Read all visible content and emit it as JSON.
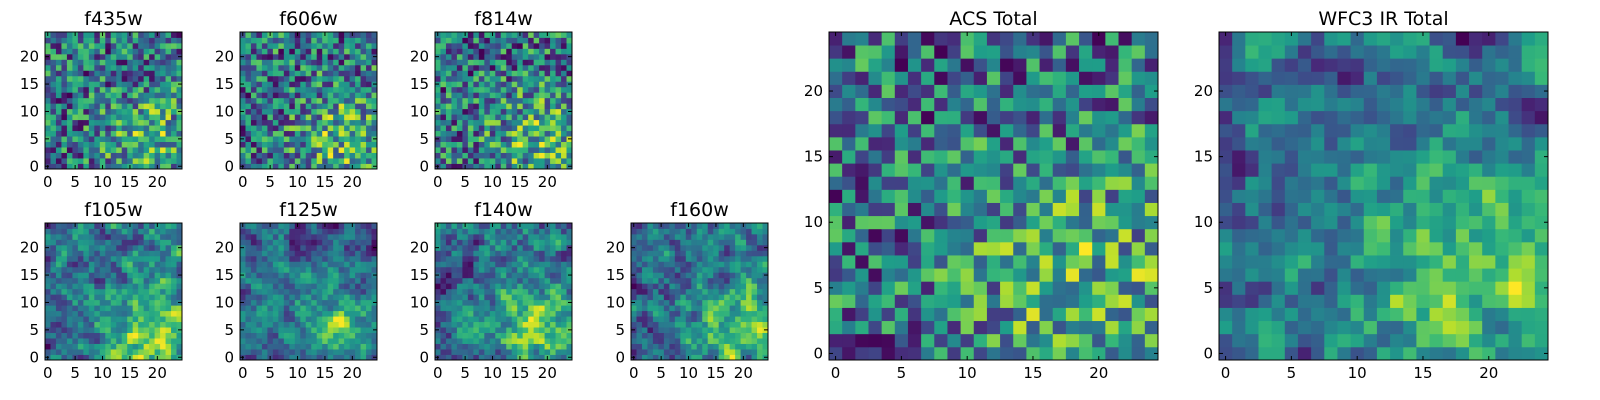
{
  "chart_data": [
    {
      "type": "heatmap",
      "title": "f435w",
      "xticks": [
        0,
        5,
        10,
        15,
        20
      ],
      "yticks": [
        0,
        5,
        10,
        15,
        20
      ],
      "xlim": [
        0,
        25
      ],
      "ylim": [
        0,
        25
      ],
      "grid_size": 25,
      "colormap": "viridis",
      "seed": 11,
      "pattern": "noise"
    },
    {
      "type": "heatmap",
      "title": "f606w",
      "xticks": [
        0,
        5,
        10,
        15,
        20
      ],
      "yticks": [
        0,
        5,
        10,
        15,
        20
      ],
      "xlim": [
        0,
        25
      ],
      "ylim": [
        0,
        25
      ],
      "grid_size": 25,
      "colormap": "viridis",
      "seed": 23,
      "pattern": "noise"
    },
    {
      "type": "heatmap",
      "title": "f814w",
      "xticks": [
        0,
        5,
        10,
        15,
        20
      ],
      "yticks": [
        0,
        5,
        10,
        15,
        20
      ],
      "xlim": [
        0,
        25
      ],
      "ylim": [
        0,
        25
      ],
      "grid_size": 25,
      "colormap": "viridis",
      "seed": 37,
      "pattern": "noise"
    },
    {
      "type": "heatmap",
      "title": "f105w",
      "xticks": [
        0,
        5,
        10,
        15,
        20
      ],
      "yticks": [
        0,
        5,
        10,
        15,
        20
      ],
      "xlim": [
        0,
        25
      ],
      "ylim": [
        0,
        25
      ],
      "grid_size": 25,
      "colormap": "viridis",
      "seed": 41,
      "pattern": "smooth"
    },
    {
      "type": "heatmap",
      "title": "f125w",
      "xticks": [
        0,
        5,
        10,
        15,
        20
      ],
      "yticks": [
        0,
        5,
        10,
        15,
        20
      ],
      "xlim": [
        0,
        25
      ],
      "ylim": [
        0,
        25
      ],
      "grid_size": 25,
      "colormap": "viridis",
      "seed": 53,
      "pattern": "smooth"
    },
    {
      "type": "heatmap",
      "title": "f140w",
      "xticks": [
        0,
        5,
        10,
        15,
        20
      ],
      "yticks": [
        0,
        5,
        10,
        15,
        20
      ],
      "xlim": [
        0,
        25
      ],
      "ylim": [
        0,
        25
      ],
      "grid_size": 25,
      "colormap": "viridis",
      "seed": 67,
      "pattern": "smooth"
    },
    {
      "type": "heatmap",
      "title": "f160w",
      "xticks": [
        0,
        5,
        10,
        15,
        20
      ],
      "yticks": [
        0,
        5,
        10,
        15,
        20
      ],
      "xlim": [
        0,
        25
      ],
      "ylim": [
        0,
        25
      ],
      "grid_size": 25,
      "colormap": "viridis",
      "seed": 79,
      "pattern": "smooth"
    },
    {
      "type": "heatmap",
      "title": "ACS Total",
      "xticks": [
        0,
        5,
        10,
        15,
        20
      ],
      "yticks": [
        0,
        5,
        10,
        15,
        20
      ],
      "xlim": [
        0,
        25
      ],
      "ylim": [
        0,
        25
      ],
      "grid_size": 25,
      "colormap": "viridis",
      "seed": 97,
      "pattern": "noise"
    },
    {
      "type": "heatmap",
      "title": "WFC3 IR Total",
      "xticks": [
        0,
        5,
        10,
        15,
        20
      ],
      "yticks": [
        0,
        5,
        10,
        15,
        20
      ],
      "xlim": [
        0,
        25
      ],
      "ylim": [
        0,
        25
      ],
      "grid_size": 25,
      "colormap": "viridis",
      "seed": 113,
      "pattern": "smooth"
    }
  ]
}
